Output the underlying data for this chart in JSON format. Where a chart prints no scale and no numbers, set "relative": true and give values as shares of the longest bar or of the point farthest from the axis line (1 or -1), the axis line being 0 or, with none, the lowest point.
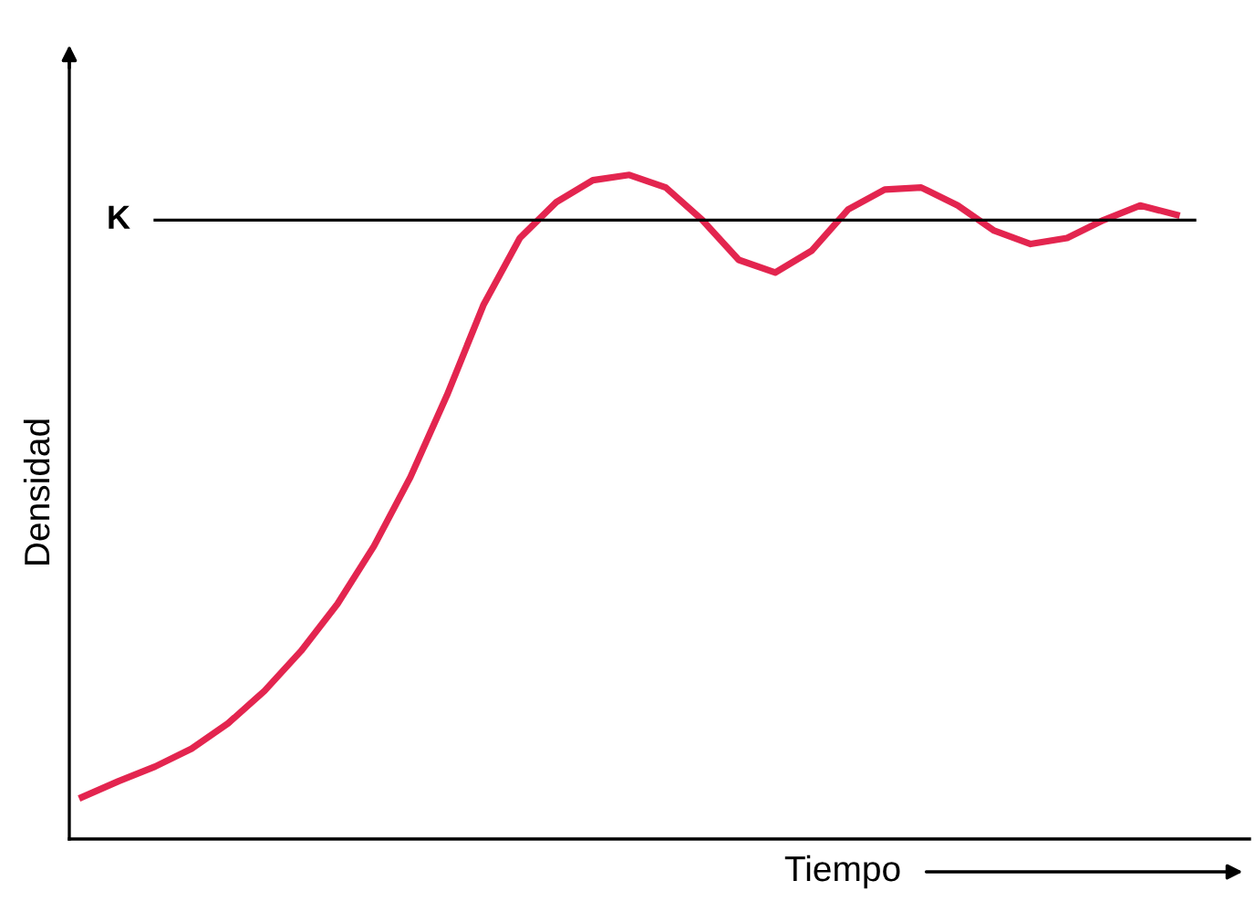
{
  "chart_data": {
    "type": "line",
    "relative": true,
    "xlabel": "Tiempo",
    "ylabel": "Densidad",
    "categories": [
      null,
      null,
      null,
      null,
      null,
      null,
      null,
      null,
      null,
      null,
      null,
      null,
      null,
      null,
      null,
      null,
      null,
      null,
      null,
      null,
      null,
      null,
      null,
      null,
      null,
      null,
      null,
      null,
      null,
      null,
      null
    ],
    "series": [
      {
        "color": "#e3254f",
        "values": [
          0.063,
          0.087,
          0.109,
          0.136,
          0.174,
          0.223,
          0.283,
          0.354,
          0.441,
          0.545,
          0.668,
          0.804,
          0.905,
          0.959,
          0.992,
          1,
          0.981,
          0.932,
          0.872,
          0.853,
          0.886,
          0.948,
          0.978,
          0.981,
          0.954,
          0.916,
          0.896,
          0.905,
          0.932,
          0.954,
          0.94
        ]
      }
    ],
    "ref_lines": [
      {
        "axis": "y",
        "value": 0.932,
        "label": "K",
        "color": "#000000"
      }
    ],
    "legend": false,
    "marker": "none",
    "line_style": "solid"
  }
}
